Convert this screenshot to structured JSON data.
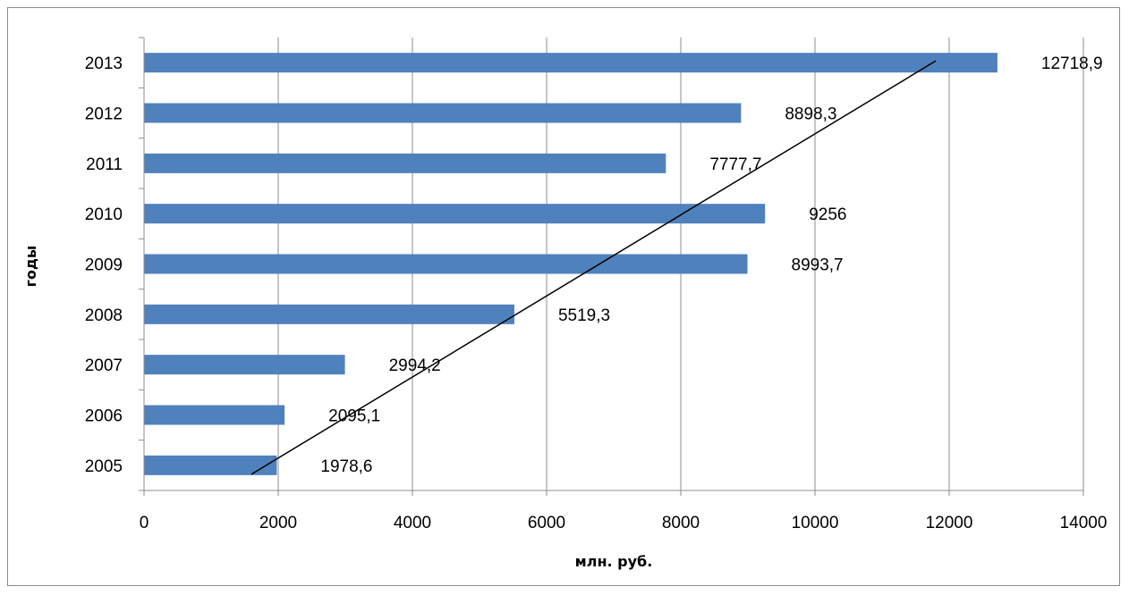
{
  "chart_data": {
    "type": "bar",
    "orientation": "horizontal",
    "title": "",
    "categories": [
      "2005",
      "2006",
      "2007",
      "2008",
      "2009",
      "2010",
      "2011",
      "2012",
      "2013"
    ],
    "values": [
      1978.6,
      2095.1,
      2994.2,
      5519.3,
      8993.7,
      9256,
      7777.7,
      8898.3,
      12718.9
    ],
    "data_labels": [
      "1978,6",
      "2095,1",
      "2994,2",
      "5519,3",
      "8993,7",
      "9256",
      "7777,7",
      "8898,3",
      "12718,9"
    ],
    "xlabel": "млн. руб.",
    "ylabel": "годы",
    "xlim": [
      0,
      14000
    ],
    "xticks": [
      0,
      2000,
      4000,
      6000,
      8000,
      10000,
      12000,
      14000
    ],
    "xtick_labels": [
      "0",
      "2000",
      "4000",
      "6000",
      "8000",
      "10000",
      "12000",
      "14000"
    ],
    "grid": "vertical",
    "legend": "none",
    "trendline": {
      "type": "linear",
      "from": {
        "x": 1600,
        "y": "2005"
      },
      "to": {
        "x": 11800,
        "y": "2013"
      }
    },
    "colors": {
      "bar": "#4f81bd",
      "grid": "#8c8c8c",
      "trend": "#000000"
    }
  }
}
